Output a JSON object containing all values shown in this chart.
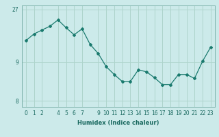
{
  "x": [
    0,
    1,
    2,
    3,
    4,
    5,
    6,
    7,
    8,
    9,
    10,
    11,
    12,
    13,
    14,
    15,
    16,
    17,
    18,
    19,
    20,
    21,
    22,
    23
  ],
  "y": [
    9.55,
    9.72,
    9.82,
    9.92,
    10.08,
    9.88,
    9.7,
    9.85,
    9.45,
    9.22,
    8.88,
    8.68,
    8.5,
    8.5,
    8.8,
    8.75,
    8.6,
    8.42,
    8.42,
    8.68,
    8.68,
    8.58,
    9.02,
    9.38
  ],
  "xlabel": "Humidex (Indice chaleur)",
  "yticks": [
    8,
    9
  ],
  "ylim": [
    7.85,
    10.45
  ],
  "xlim": [
    -0.5,
    23.5
  ],
  "xticks": [
    0,
    1,
    2,
    4,
    5,
    6,
    7,
    9,
    10,
    11,
    12,
    13,
    14,
    15,
    16,
    17,
    18,
    19,
    20,
    21,
    22,
    23
  ],
  "line_color": "#1a7a6e",
  "marker": "D",
  "marker_size": 2.0,
  "bg_color": "#cceaea",
  "grid_color": "#aed4cc",
  "top_ytick_label": "27",
  "top_ytick_value": 10.35
}
